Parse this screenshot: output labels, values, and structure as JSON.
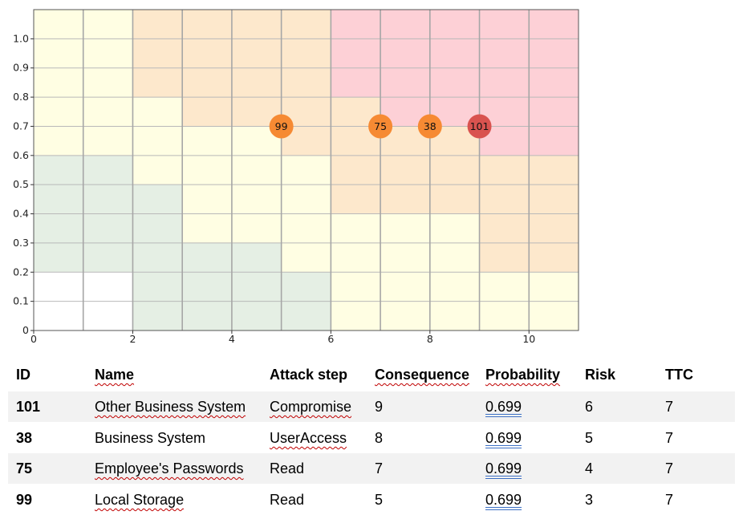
{
  "chart_data": {
    "type": "scatter",
    "title": "",
    "xlabel": "",
    "ylabel": "",
    "xlim": [
      0,
      11
    ],
    "ylim": [
      0,
      1.1
    ],
    "x_ticks": [
      0,
      2,
      4,
      6,
      8,
      10
    ],
    "y_ticks": [
      0,
      0.1,
      0.2,
      0.3,
      0.4,
      0.5,
      0.6,
      0.7,
      0.8,
      0.9,
      1.0
    ],
    "y_tick_labels": [
      "0",
      "0.1",
      "0.2",
      "0.3",
      "0.4",
      "0.5",
      "0.6",
      "0.7",
      "0.8",
      "0.9",
      "1.0"
    ],
    "grid": true,
    "background_zones": {
      "colors": {
        "white": "#ffffff",
        "green": "#e5efe4",
        "yellow": "#fffee3",
        "orange": "#fde8cc",
        "red": "#fdd0d6"
      },
      "columns": [
        {
          "x_range": [
            0,
            1
          ],
          "bands": [
            [
              0,
              0.2,
              "white"
            ],
            [
              0.2,
              0.6,
              "green"
            ],
            [
              0.6,
              1.1,
              "yellow"
            ]
          ]
        },
        {
          "x_range": [
            1,
            2
          ],
          "bands": [
            [
              0,
              0.2,
              "white"
            ],
            [
              0.2,
              0.6,
              "green"
            ],
            [
              0.6,
              1.1,
              "yellow"
            ]
          ]
        },
        {
          "x_range": [
            2,
            3
          ],
          "bands": [
            [
              0,
              0.5,
              "green"
            ],
            [
              0.5,
              0.8,
              "yellow"
            ],
            [
              0.8,
              1.1,
              "orange"
            ]
          ]
        },
        {
          "x_range": [
            3,
            4
          ],
          "bands": [
            [
              0,
              0.3,
              "green"
            ],
            [
              0.3,
              0.7,
              "yellow"
            ],
            [
              0.7,
              1.1,
              "orange"
            ]
          ]
        },
        {
          "x_range": [
            4,
            5
          ],
          "bands": [
            [
              0,
              0.3,
              "green"
            ],
            [
              0.3,
              0.7,
              "yellow"
            ],
            [
              0.7,
              1.1,
              "orange"
            ]
          ]
        },
        {
          "x_range": [
            5,
            6
          ],
          "bands": [
            [
              0,
              0.2,
              "green"
            ],
            [
              0.2,
              0.6,
              "yellow"
            ],
            [
              0.6,
              1.1,
              "orange"
            ]
          ]
        },
        {
          "x_range": [
            6,
            7
          ],
          "bands": [
            [
              0,
              0.4,
              "yellow"
            ],
            [
              0.4,
              0.8,
              "orange"
            ],
            [
              0.8,
              1.1,
              "red"
            ]
          ]
        },
        {
          "x_range": [
            7,
            8
          ],
          "bands": [
            [
              0,
              0.4,
              "yellow"
            ],
            [
              0.4,
              0.7,
              "orange"
            ],
            [
              0.7,
              1.1,
              "red"
            ]
          ]
        },
        {
          "x_range": [
            8,
            9
          ],
          "bands": [
            [
              0,
              0.4,
              "yellow"
            ],
            [
              0.4,
              0.7,
              "orange"
            ],
            [
              0.7,
              1.1,
              "red"
            ]
          ]
        },
        {
          "x_range": [
            9,
            10
          ],
          "bands": [
            [
              0,
              0.2,
              "yellow"
            ],
            [
              0.2,
              0.6,
              "orange"
            ],
            [
              0.6,
              1.1,
              "red"
            ]
          ]
        },
        {
          "x_range": [
            10,
            11
          ],
          "bands": [
            [
              0,
              0.2,
              "yellow"
            ],
            [
              0.2,
              0.6,
              "orange"
            ],
            [
              0.6,
              1.1,
              "red"
            ]
          ]
        }
      ]
    },
    "points": [
      {
        "label": "99",
        "x": 5,
        "y": 0.7,
        "color": "#f68a33"
      },
      {
        "label": "75",
        "x": 7,
        "y": 0.7,
        "color": "#f68a33"
      },
      {
        "label": "38",
        "x": 8,
        "y": 0.7,
        "color": "#f68a33"
      },
      {
        "label": "101",
        "x": 9,
        "y": 0.7,
        "color": "#d9534f"
      }
    ]
  },
  "table": {
    "headers": [
      "ID",
      "Name",
      "Attack step",
      "Consequence",
      "Probability",
      "Risk",
      "TTC"
    ],
    "rows": [
      [
        "101",
        "Other Business System",
        "Compromise",
        "9",
        "0.699",
        "6",
        "7"
      ],
      [
        "38",
        "Business System",
        "UserAccess",
        "8",
        "0.699",
        "5",
        "7"
      ],
      [
        "75",
        "Employee's Passwords",
        "Read",
        "7",
        "0.699",
        "4",
        "7"
      ],
      [
        "99",
        "Local Storage",
        "Read",
        "5",
        "0.699",
        "3",
        "7"
      ]
    ]
  }
}
